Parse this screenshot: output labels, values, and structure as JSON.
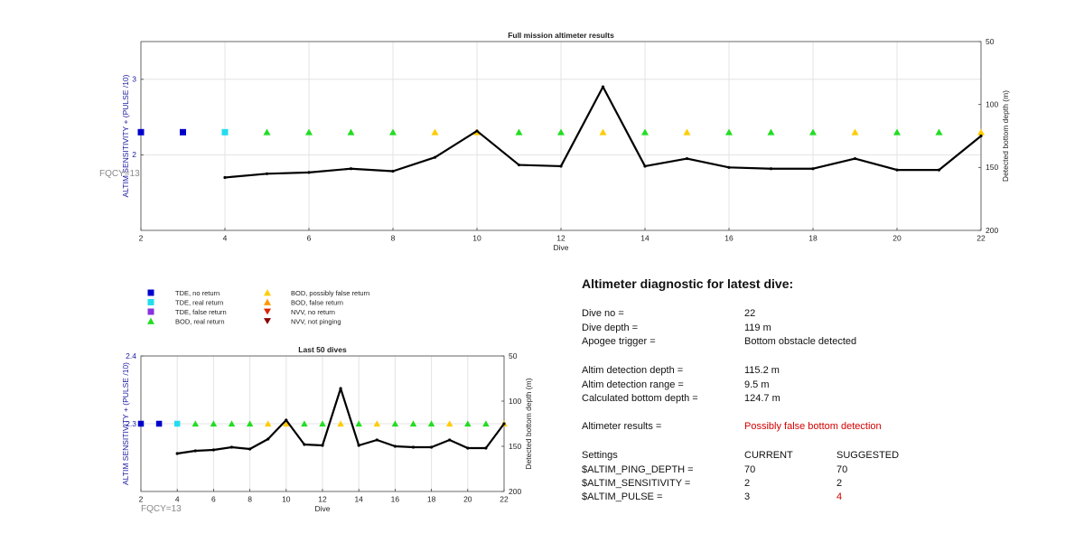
{
  "top_chart": {
    "title": "Full mission altimeter results",
    "xlabel": "Dive",
    "ylabel_left": "ALTIM SENSITIVITY + (PULSE /10)",
    "ylabel_right": "Detected bottom depth (m)",
    "fqcy_label": "FQCY=13"
  },
  "bottom_chart": {
    "title": "Last 50 dives",
    "xlabel": "Dive",
    "ylabel_left": "ALTIM SENSITIVITY + (PULSE /10)",
    "ylabel_right": "Detected bottom depth (m)",
    "fqcy_label": "FQCY=13"
  },
  "legend": [
    {
      "label": "TDE, no return",
      "color": "#0000cc",
      "shape": "square"
    },
    {
      "label": "TDE, real return",
      "color": "#22ddee",
      "shape": "square"
    },
    {
      "label": "TDE, false return",
      "color": "#8833dd",
      "shape": "square"
    },
    {
      "label": "BOD, real return",
      "color": "#22dd22",
      "shape": "triangle-up"
    },
    {
      "label": "BOD, possibly false return",
      "color": "#ffcc00",
      "shape": "triangle-up"
    },
    {
      "label": "BOD, false return",
      "color": "#ff9900",
      "shape": "triangle-up"
    },
    {
      "label": "NVV, no return",
      "color": "#dd2200",
      "shape": "triangle-down"
    },
    {
      "label": "NVV, not pinging",
      "color": "#880000",
      "shape": "triangle-down"
    }
  ],
  "chart_data": [
    {
      "type": "line",
      "title": "Full mission altimeter results",
      "xlabel": "Dive",
      "ylabel": "ALTIM SENSITIVITY + (PULSE /10)",
      "y2label": "Detected bottom depth (m)",
      "xlim": [
        2,
        22
      ],
      "ylim": [
        1,
        3.5
      ],
      "y2lim": [
        200,
        50
      ],
      "y2_reversed": true,
      "x_ticks": [
        2,
        4,
        6,
        8,
        10,
        12,
        14,
        16,
        18,
        20,
        22
      ],
      "y_ticks": [
        2,
        3
      ],
      "y2_ticks": [
        50,
        100,
        150,
        200
      ],
      "grid": true,
      "series": [
        {
          "role": "markers",
          "x": [
            2,
            3,
            4,
            5,
            6,
            7,
            8,
            9,
            10,
            11,
            12,
            13,
            14,
            15,
            16,
            17,
            18,
            19,
            20,
            21,
            22
          ],
          "y": [
            2.3,
            2.3,
            2.3,
            2.3,
            2.3,
            2.3,
            2.3,
            2.3,
            2.3,
            2.3,
            2.3,
            2.3,
            2.3,
            2.3,
            2.3,
            2.3,
            2.3,
            2.3,
            2.3,
            2.3,
            2.3
          ],
          "class": [
            "TDE, no return",
            "TDE, no return",
            "TDE, real return",
            "BOD, real return",
            "BOD, real return",
            "BOD, real return",
            "BOD, real return",
            "BOD, possibly false return",
            "BOD, possibly false return",
            "BOD, real return",
            "BOD, real return",
            "BOD, possibly false return",
            "BOD, real return",
            "BOD, possibly false return",
            "BOD, real return",
            "BOD, real return",
            "BOD, real return",
            "BOD, possibly false return",
            "BOD, real return",
            "BOD, real return",
            "BOD, possibly false return"
          ]
        },
        {
          "role": "bottom_depth",
          "axis": "right",
          "x": [
            4,
            5,
            6,
            7,
            8,
            9,
            10,
            11,
            12,
            13,
            14,
            15,
            16,
            17,
            18,
            19,
            20,
            21,
            22
          ],
          "y": [
            158,
            155,
            154,
            151,
            153,
            142,
            121,
            148,
            149,
            86,
            149,
            143,
            150,
            151,
            151,
            143,
            152,
            152,
            125
          ]
        }
      ]
    },
    {
      "type": "line",
      "title": "Last 50 dives",
      "xlabel": "Dive",
      "ylabel": "ALTIM SENSITIVITY + (PULSE /10)",
      "y2label": "Detected bottom depth (m)",
      "xlim": [
        2,
        22
      ],
      "ylim": [
        2.2,
        2.4
      ],
      "y2lim": [
        200,
        50
      ],
      "y2_reversed": true,
      "x_ticks": [
        2,
        4,
        6,
        8,
        10,
        12,
        14,
        16,
        18,
        20,
        22
      ],
      "y_ticks": [
        2.3,
        2.4
      ],
      "y2_ticks": [
        50,
        100,
        150,
        200
      ],
      "grid": true,
      "series": [
        {
          "role": "markers",
          "x": [
            2,
            3,
            4,
            5,
            6,
            7,
            8,
            9,
            10,
            11,
            12,
            13,
            14,
            15,
            16,
            17,
            18,
            19,
            20,
            21,
            22
          ],
          "y": [
            2.3,
            2.3,
            2.3,
            2.3,
            2.3,
            2.3,
            2.3,
            2.3,
            2.3,
            2.3,
            2.3,
            2.3,
            2.3,
            2.3,
            2.3,
            2.3,
            2.3,
            2.3,
            2.3,
            2.3,
            2.3
          ],
          "class": [
            "TDE, no return",
            "TDE, no return",
            "TDE, real return",
            "BOD, real return",
            "BOD, real return",
            "BOD, real return",
            "BOD, real return",
            "BOD, possibly false return",
            "BOD, possibly false return",
            "BOD, real return",
            "BOD, real return",
            "BOD, possibly false return",
            "BOD, real return",
            "BOD, possibly false return",
            "BOD, real return",
            "BOD, real return",
            "BOD, real return",
            "BOD, possibly false return",
            "BOD, real return",
            "BOD, real return",
            "BOD, possibly false return"
          ]
        },
        {
          "role": "bottom_depth",
          "axis": "right",
          "x": [
            4,
            5,
            6,
            7,
            8,
            9,
            10,
            11,
            12,
            13,
            14,
            15,
            16,
            17,
            18,
            19,
            20,
            21,
            22
          ],
          "y": [
            158,
            155,
            154,
            151,
            153,
            142,
            121,
            148,
            149,
            86,
            149,
            143,
            150,
            151,
            151,
            143,
            152,
            152,
            125
          ]
        }
      ]
    }
  ],
  "diagnostic": {
    "title": "Altimeter diagnostic for latest dive:",
    "dive_no_label": "Dive no =",
    "dive_no_value": "22",
    "dive_depth_label": "Dive depth =",
    "dive_depth_value": "119 m",
    "apogee_label": "Apogee trigger =",
    "apogee_value": "Bottom obstacle detected",
    "altim_depth_label": "Altim detection depth =",
    "altim_depth_value": "115.2 m",
    "altim_range_label": "Altim detection range =",
    "altim_range_value": "9.5 m",
    "calc_depth_label": "Calculated bottom depth =",
    "calc_depth_value": "124.7 m",
    "results_label": "Altimeter results =",
    "results_value": "Possibly false bottom detection",
    "settings_label": "Settings",
    "current_label": "CURRENT",
    "suggested_label": "SUGGESTED",
    "ping_depth_label": "$ALTIM_PING_DEPTH =",
    "ping_depth_current": "70",
    "ping_depth_suggested": "70",
    "sensitivity_label": "$ALTIM_SENSITIVITY =",
    "sensitivity_current": "2",
    "sensitivity_suggested": "2",
    "pulse_label": "$ALTIM_PULSE =",
    "pulse_current": "3",
    "pulse_suggested": "4",
    "warning_color": "#d40000"
  }
}
